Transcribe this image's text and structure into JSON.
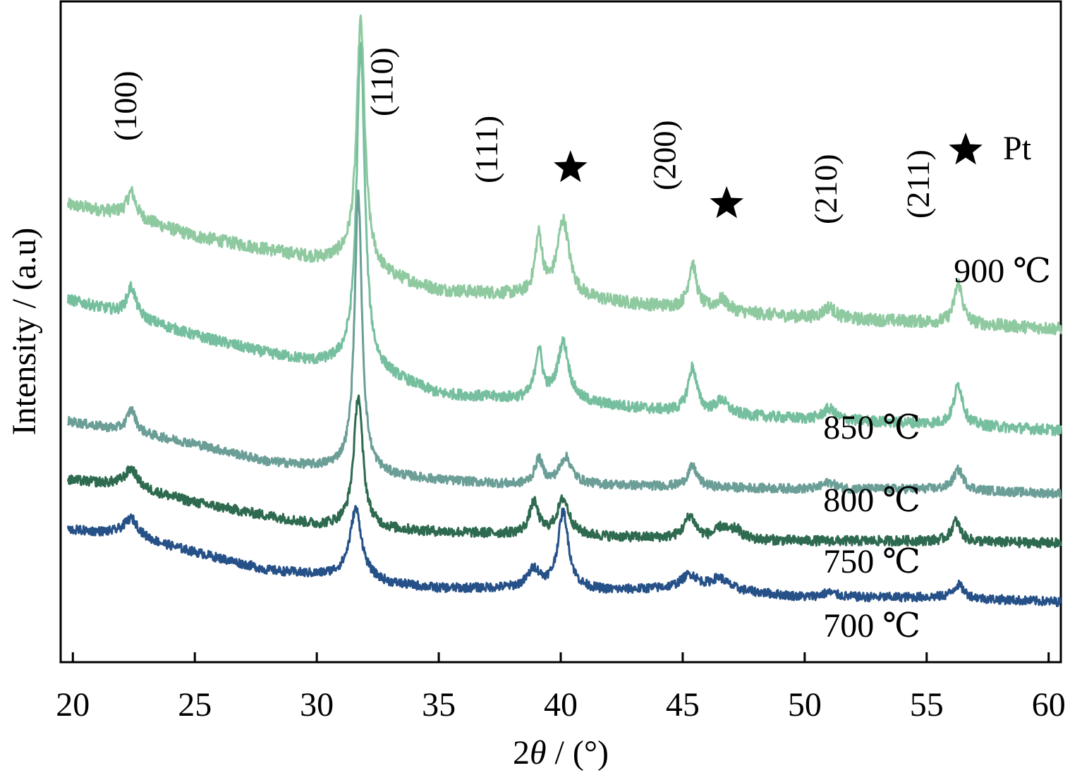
{
  "chart_data": {
    "type": "line",
    "xlabel_prefix": "2",
    "xlabel_symbol": "θ",
    "xlabel_suffix": " / (°)",
    "ylabel": "Intensity / (a.u)",
    "xlim": [
      19.5,
      60.5
    ],
    "xticks": [
      20,
      25,
      30,
      35,
      40,
      45,
      50,
      55,
      60
    ],
    "grid": false,
    "series": [
      {
        "name": "900 ℃",
        "color": "#8ec9a0",
        "offset": 0.6,
        "baseline": [
          [
            19.8,
            0.29
          ],
          [
            22,
            0.27
          ],
          [
            25,
            0.22
          ],
          [
            28,
            0.19
          ],
          [
            30,
            0.17
          ],
          [
            31.3,
            0.17
          ],
          [
            33,
            0.13
          ],
          [
            35,
            0.1
          ],
          [
            38,
            0.09
          ],
          [
            41,
            0.08
          ],
          [
            45,
            0.06
          ],
          [
            50,
            0.04
          ],
          [
            55,
            0.03
          ],
          [
            60.5,
            0.015
          ]
        ],
        "peaks": [
          [
            22.4,
            0.055,
            0.22
          ],
          [
            31.8,
            0.54,
            0.2
          ],
          [
            39.1,
            0.13,
            0.18
          ],
          [
            40.1,
            0.17,
            0.3
          ],
          [
            45.4,
            0.1,
            0.2
          ],
          [
            46.6,
            0.025,
            0.3
          ],
          [
            51.0,
            0.025,
            0.3
          ],
          [
            56.3,
            0.09,
            0.2
          ]
        ],
        "noise": 0.014
      },
      {
        "name": "850 ℃",
        "color": "#76bf9e",
        "offset": 0.37,
        "baseline": [
          [
            19.8,
            0.31
          ],
          [
            22,
            0.28
          ],
          [
            25,
            0.23
          ],
          [
            28,
            0.19
          ],
          [
            30,
            0.17
          ],
          [
            31.3,
            0.17
          ],
          [
            33,
            0.14
          ],
          [
            35,
            0.1
          ],
          [
            38,
            0.09
          ],
          [
            41,
            0.08
          ],
          [
            45,
            0.06
          ],
          [
            50,
            0.045
          ],
          [
            55,
            0.035
          ],
          [
            60.5,
            0.02
          ]
        ],
        "peaks": [
          [
            22.4,
            0.065,
            0.22
          ],
          [
            31.8,
            0.71,
            0.2
          ],
          [
            39.1,
            0.11,
            0.18
          ],
          [
            40.1,
            0.13,
            0.28
          ],
          [
            45.4,
            0.1,
            0.22
          ],
          [
            46.6,
            0.03,
            0.3
          ],
          [
            51.0,
            0.025,
            0.3
          ],
          [
            56.3,
            0.09,
            0.22
          ]
        ],
        "noise": 0.012
      },
      {
        "name": "800 ℃",
        "color": "#6a9e96",
        "offset": 0.24,
        "baseline": [
          [
            19.8,
            0.17
          ],
          [
            22,
            0.15
          ],
          [
            25,
            0.12
          ],
          [
            28,
            0.08
          ],
          [
            30,
            0.07
          ],
          [
            31.3,
            0.07
          ],
          [
            33,
            0.05
          ],
          [
            35,
            0.04
          ],
          [
            38,
            0.03
          ],
          [
            41,
            0.03
          ],
          [
            45,
            0.025
          ],
          [
            50,
            0.02
          ],
          [
            55,
            0.02
          ],
          [
            60.5,
            0.01
          ]
        ],
        "peaks": [
          [
            22.4,
            0.05,
            0.22
          ],
          [
            31.7,
            0.61,
            0.18
          ],
          [
            39.1,
            0.055,
            0.2
          ],
          [
            40.2,
            0.06,
            0.3
          ],
          [
            45.4,
            0.045,
            0.24
          ],
          [
            51.0,
            0.015,
            0.3
          ],
          [
            56.3,
            0.045,
            0.25
          ]
        ],
        "noise": 0.01
      },
      {
        "name": "750 ℃",
        "color": "#2d6a4f",
        "offset": 0.13,
        "baseline": [
          [
            19.8,
            0.15
          ],
          [
            22,
            0.14
          ],
          [
            25,
            0.1
          ],
          [
            28,
            0.07
          ],
          [
            30,
            0.05
          ],
          [
            31.3,
            0.05
          ],
          [
            33,
            0.04
          ],
          [
            35,
            0.035
          ],
          [
            38,
            0.03
          ],
          [
            41,
            0.025
          ],
          [
            45,
            0.02
          ],
          [
            50,
            0.015
          ],
          [
            55,
            0.015
          ],
          [
            60.5,
            0.01
          ]
        ],
        "peaks": [
          [
            22.4,
            0.04,
            0.3
          ],
          [
            31.7,
            0.29,
            0.22
          ],
          [
            38.9,
            0.07,
            0.22
          ],
          [
            40.1,
            0.08,
            0.3
          ],
          [
            45.3,
            0.05,
            0.28
          ],
          [
            46.6,
            0.025,
            0.3
          ],
          [
            47.2,
            0.02,
            0.25
          ],
          [
            56.2,
            0.045,
            0.22
          ]
        ],
        "noise": 0.011
      },
      {
        "name": "700 ℃",
        "color": "#265188",
        "offset": 0.0,
        "baseline": [
          [
            19.8,
            0.17
          ],
          [
            22,
            0.16
          ],
          [
            25,
            0.12
          ],
          [
            28,
            0.08
          ],
          [
            30,
            0.07
          ],
          [
            31.3,
            0.07
          ],
          [
            33,
            0.05
          ],
          [
            35,
            0.04
          ],
          [
            37,
            0.04
          ],
          [
            39,
            0.04
          ],
          [
            42,
            0.035
          ],
          [
            45,
            0.04
          ],
          [
            47,
            0.035
          ],
          [
            50,
            0.02
          ],
          [
            55,
            0.02
          ],
          [
            60.5,
            0.01
          ]
        ],
        "peaks": [
          [
            22.4,
            0.04,
            0.35
          ],
          [
            31.6,
            0.15,
            0.28
          ],
          [
            38.9,
            0.04,
            0.3
          ],
          [
            40.1,
            0.17,
            0.26
          ],
          [
            45.3,
            0.03,
            0.4
          ],
          [
            46.5,
            0.025,
            0.4
          ],
          [
            51.0,
            0.01,
            0.4
          ],
          [
            56.3,
            0.03,
            0.28
          ]
        ],
        "noise": 0.01
      }
    ],
    "hkl_labels": [
      {
        "text": "(100)",
        "x": 22.6
      },
      {
        "text": "(110)",
        "x": 33.1
      },
      {
        "text": "(111)",
        "x": 37.4
      },
      {
        "text": "(200)",
        "x": 44.7
      },
      {
        "text": "(210)",
        "x": 51.3
      },
      {
        "text": "(211)",
        "x": 55.1
      }
    ],
    "pt_markers": [
      40.4,
      46.8,
      56.6
    ],
    "pt_legend": "Pt",
    "series_labels": [
      "900 ℃",
      "850 ℃",
      "800 ℃",
      "750 ℃",
      "700 ℃"
    ]
  }
}
